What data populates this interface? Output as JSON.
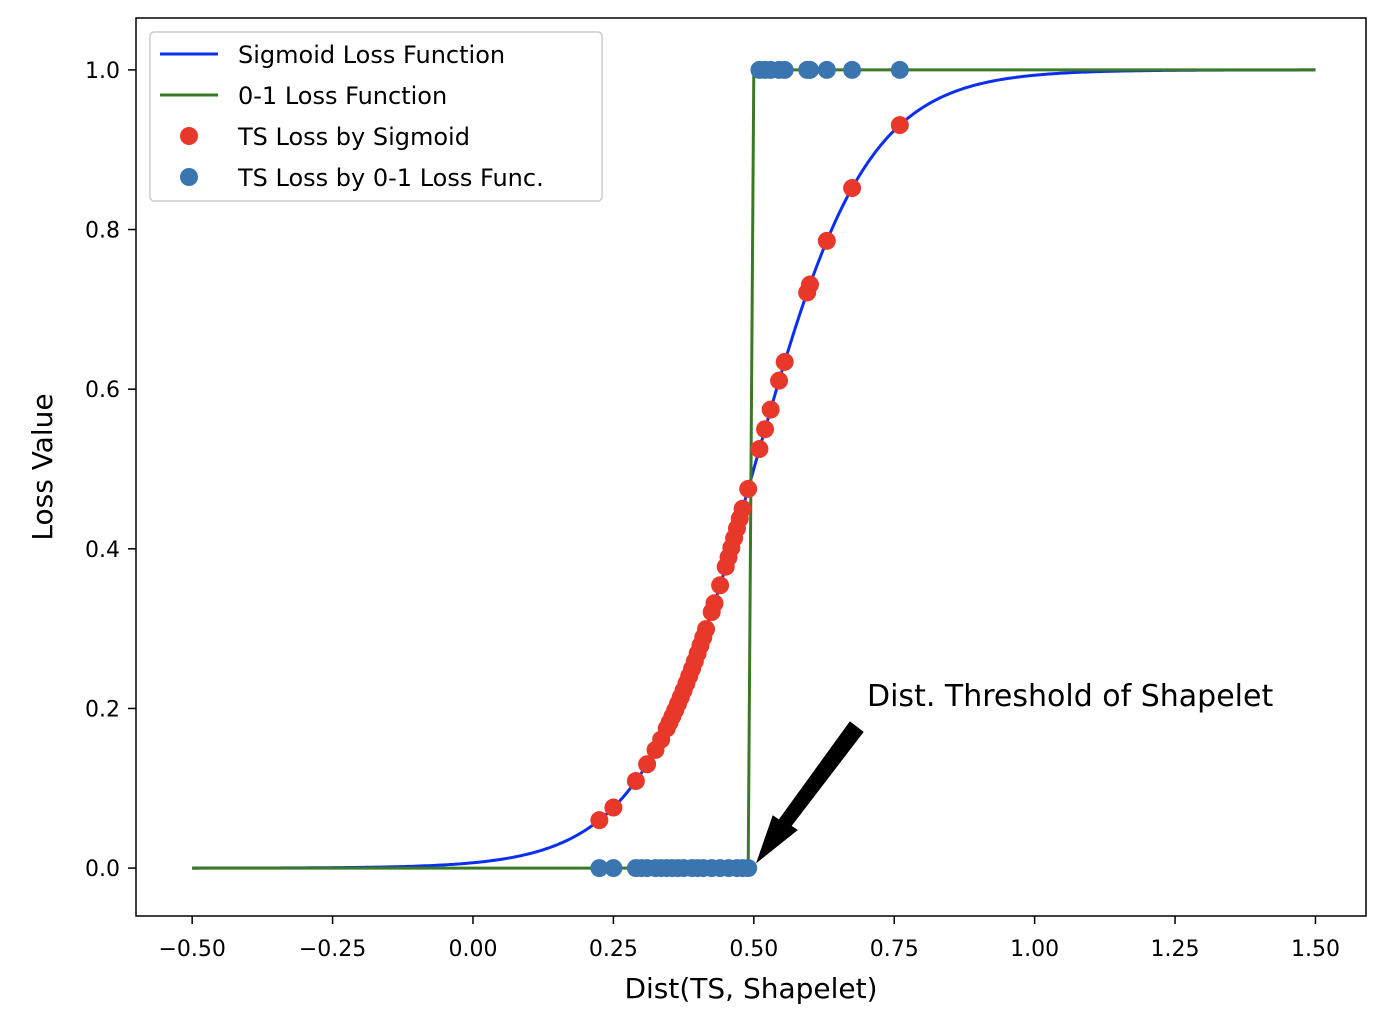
{
  "chart_data": {
    "type": "line",
    "title": "",
    "xlabel": "Dist(TS, Shapelet)",
    "ylabel": "Loss Value",
    "xlim": [
      -0.6,
      1.59
    ],
    "ylim": [
      -0.06,
      1.065
    ],
    "grid": false,
    "legend_position": "top-left",
    "xticks": [
      -0.5,
      -0.25,
      0.0,
      0.25,
      0.5,
      0.75,
      1.0,
      1.25,
      1.5
    ],
    "xtick_labels": [
      "−0.50",
      "−0.25",
      "0.00",
      "0.25",
      "0.50",
      "0.75",
      "1.00",
      "1.25",
      "1.50"
    ],
    "yticks": [
      0.0,
      0.2,
      0.4,
      0.6,
      0.8,
      1.0
    ],
    "ytick_labels": [
      "0.0",
      "0.2",
      "0.4",
      "0.6",
      "0.8",
      "1.0"
    ],
    "sigmoid": {
      "center": 0.5,
      "steepness": 10,
      "x_range": [
        -0.5,
        1.5
      ]
    },
    "step_threshold": 0.49,
    "series": [
      {
        "name": "Sigmoid Loss Function",
        "kind": "line",
        "color": "#0b2ff0"
      },
      {
        "name": "0-1 Loss Function",
        "kind": "line",
        "color": "#3a7a24"
      },
      {
        "name": "TS Loss by Sigmoid",
        "kind": "scatter",
        "color": "#e8382a",
        "x": [
          0.225,
          0.25,
          0.29,
          0.31,
          0.325,
          0.335,
          0.345,
          0.35,
          0.355,
          0.36,
          0.365,
          0.37,
          0.375,
          0.38,
          0.385,
          0.39,
          0.395,
          0.4,
          0.405,
          0.41,
          0.415,
          0.425,
          0.43,
          0.44,
          0.45,
          0.455,
          0.46,
          0.465,
          0.47,
          0.475,
          0.48,
          0.49,
          0.51,
          0.52,
          0.53,
          0.545,
          0.555,
          0.595,
          0.6,
          0.63,
          0.675,
          0.76
        ]
      },
      {
        "name": "TS Loss by 0-1 Loss Func.",
        "kind": "scatter",
        "color": "#3a75b0",
        "x": [
          0.225,
          0.25,
          0.29,
          0.3,
          0.31,
          0.325,
          0.335,
          0.345,
          0.355,
          0.365,
          0.375,
          0.39,
          0.4,
          0.41,
          0.425,
          0.44,
          0.455,
          0.47,
          0.48,
          0.49,
          0.51,
          0.52,
          0.53,
          0.545,
          0.555,
          0.595,
          0.6,
          0.63,
          0.675,
          0.76
        ]
      }
    ],
    "annotation": {
      "text": "Dist. Threshold of Shapelet",
      "x": 0.7,
      "y": 0.2,
      "arrow_to": [
        0.5,
        0.0
      ]
    }
  }
}
